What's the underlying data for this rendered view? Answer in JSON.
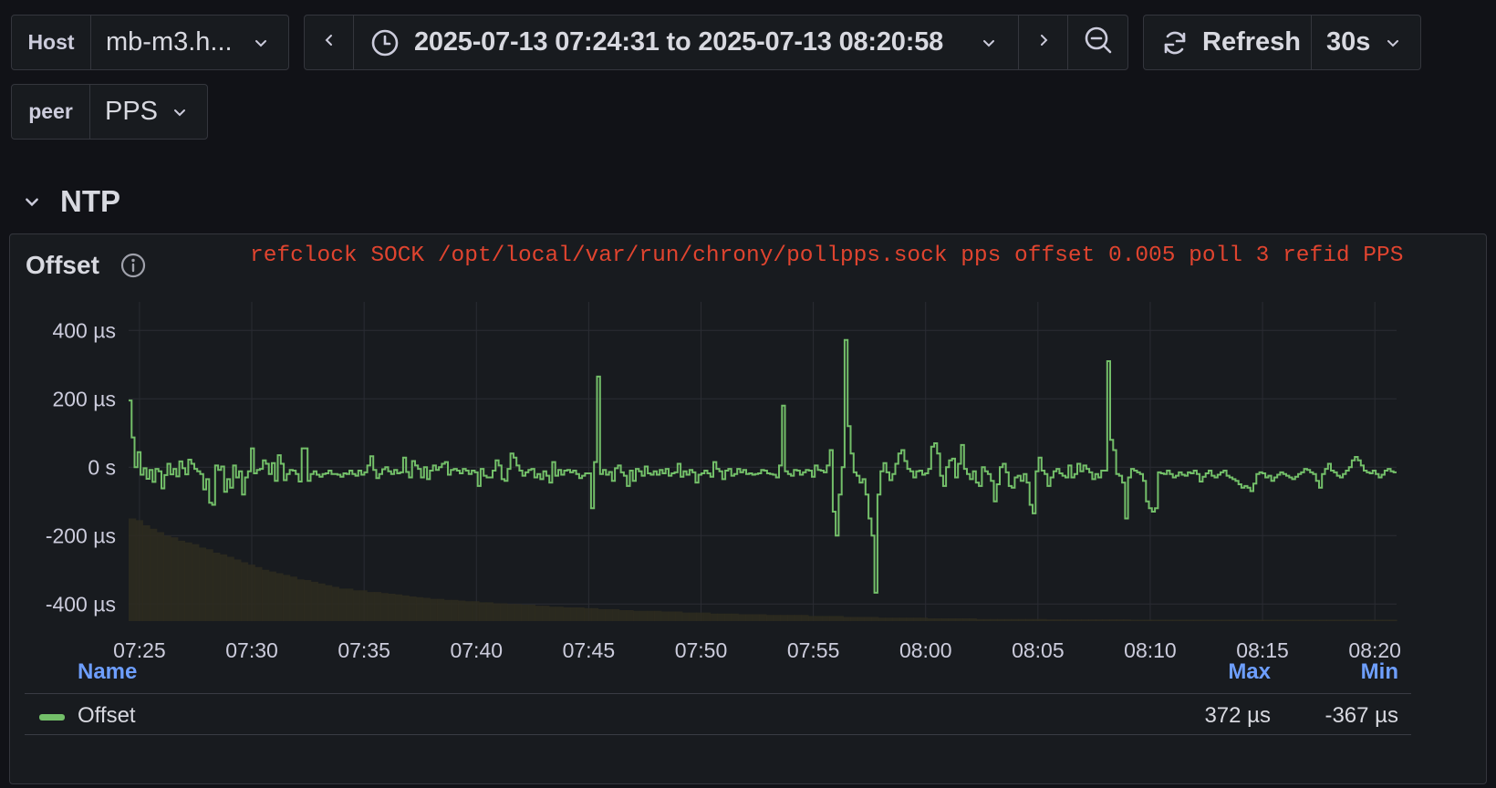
{
  "host": {
    "label": "Host",
    "value": "mb-m3.h..."
  },
  "peer": {
    "label": "peer",
    "value": "PPS"
  },
  "time_range": {
    "text": "2025-07-13 07:24:31 to 2025-07-13 08:20:58"
  },
  "refresh": {
    "label": "Refresh",
    "interval": "30s"
  },
  "row": {
    "title": "NTP"
  },
  "panel": {
    "title": "Offset",
    "annotation": "refclock SOCK /opt/local/var/run/chrony/pollpps.sock pps offset 0.005 poll 3 refid PPS"
  },
  "legend": {
    "name_header": "Name",
    "max_header": "Max",
    "min_header": "Min",
    "series_name": "Offset",
    "max_value": "372 µs",
    "min_value": "-367 µs"
  },
  "colors": {
    "series": "#73bf69",
    "fill": "#2e2b20",
    "annotation": "#e0442f",
    "legend_header": "#6e9fff"
  },
  "chart_data": {
    "type": "line",
    "ylim": [
      -450,
      430
    ],
    "y_ticks": [
      400,
      200,
      0,
      -200,
      -400
    ],
    "y_tick_labels": [
      "400 µs",
      "200 µs",
      "0 s",
      "-200 µs",
      "-400 µs"
    ],
    "x_tick_labels": [
      "07:25",
      "07:30",
      "07:35",
      "07:40",
      "07:45",
      "07:50",
      "07:55",
      "08:00",
      "08:05",
      "08:10",
      "08:15",
      "08:20"
    ],
    "x_tick_times": [
      "07:25",
      "07:30",
      "07:35",
      "07:40",
      "07:45",
      "07:50",
      "07:55",
      "08:00",
      "08:05",
      "08:10",
      "08:15",
      "08:20"
    ],
    "x_range": [
      "07:24:31",
      "08:20:58"
    ],
    "series": [
      {
        "name": "Offset",
        "step_interval_s": 16,
        "values": [
          195,
          87,
          0,
          44,
          -22,
          -3,
          -34,
          -8,
          -43,
          -5,
          -12,
          -62,
          -23,
          10,
          -21,
          -5,
          -27,
          17,
          -3,
          -21,
          22,
          10,
          -5,
          -12,
          -20,
          -65,
          -35,
          -104,
          -110,
          5,
          -8,
          2,
          -72,
          -35,
          -60,
          5,
          -30,
          -12,
          -80,
          -30,
          -12,
          55,
          -18,
          -8,
          -5,
          20,
          10,
          -20,
          12,
          -40,
          35,
          10,
          -38,
          -20,
          -8,
          -10,
          -20,
          -42,
          55,
          55,
          -40,
          -20,
          -12,
          -22,
          -28,
          -20,
          -18,
          -10,
          -20,
          -20,
          -22,
          -28,
          -18,
          -20,
          -10,
          -20,
          -25,
          -10,
          -22,
          -15,
          5,
          32,
          -8,
          -32,
          -20,
          -6,
          0,
          -12,
          -20,
          -8,
          -18,
          -15,
          28,
          -14,
          -30,
          18,
          5,
          -5,
          -30,
          0,
          -35,
          -10,
          5,
          -8,
          0,
          10,
          15,
          -22,
          -8,
          -5,
          -10,
          -18,
          -5,
          -10,
          -20,
          -10,
          -15,
          -55,
          -5,
          -25,
          -30,
          -30,
          -10,
          20,
          5,
          -35,
          -40,
          -5,
          40,
          28,
          5,
          -10,
          -25,
          -15,
          -8,
          -5,
          -30,
          -20,
          -35,
          -12,
          -25,
          -45,
          15,
          -25,
          -8,
          -22,
          -10,
          -8,
          -15,
          -10,
          -20,
          -32,
          -25,
          -18,
          -18,
          -120,
          15,
          265,
          -20,
          -8,
          -22,
          -14,
          -40,
          -3,
          5,
          -15,
          -25,
          -55,
          -10,
          -40,
          -5,
          -12,
          -25,
          2,
          -18,
          -22,
          -12,
          -22,
          -8,
          -18,
          -5,
          -25,
          -18,
          -15,
          10,
          -28,
          -12,
          -22,
          -8,
          -15,
          -45,
          -22,
          -18,
          -10,
          -18,
          -28,
          15,
          -5,
          -12,
          -35,
          -10,
          -5,
          -25,
          -20,
          -5,
          -15,
          -8,
          -20,
          -18,
          -22,
          -20,
          -18,
          -8,
          -10,
          -18,
          -20,
          -22,
          -30,
          5,
          180,
          -12,
          -20,
          -25,
          -8,
          -10,
          -22,
          -15,
          -8,
          -10,
          -28,
          5,
          -8,
          -10,
          -15,
          5,
          50,
          -130,
          -200,
          -80,
          0,
          372,
          120,
          40,
          -15,
          -25,
          -45,
          -35,
          -80,
          -150,
          -200,
          -367,
          -80,
          -12,
          12,
          -15,
          -38,
          -20,
          10,
          40,
          50,
          18,
          -5,
          -12,
          -30,
          -12,
          -10,
          -22,
          -18,
          -5,
          60,
          70,
          40,
          -25,
          -55,
          0,
          20,
          25,
          -30,
          10,
          65,
          -5,
          -20,
          -35,
          -12,
          -45,
          -55,
          0,
          -12,
          -20,
          -40,
          -100,
          -50,
          0,
          10,
          -15,
          -55,
          -60,
          -30,
          -25,
          -40,
          -20,
          -45,
          -110,
          -135,
          -12,
          28,
          -10,
          -20,
          -55,
          -30,
          -12,
          -5,
          -18,
          -25,
          -30,
          5,
          -30,
          -20,
          10,
          -12,
          5,
          -5,
          -15,
          -35,
          -20,
          -30,
          -10,
          -10,
          310,
          80,
          50,
          -20,
          -25,
          -45,
          -150,
          -30,
          -5,
          -10,
          -15,
          -20,
          -40,
          -100,
          -120,
          -130,
          -120,
          -15,
          -18,
          -20,
          -10,
          -20,
          -30,
          -25,
          -15,
          -22,
          -25,
          -15,
          -18,
          -10,
          -20,
          -42,
          -28,
          -18,
          -10,
          -25,
          -30,
          -22,
          -15,
          -10,
          -25,
          -30,
          -35,
          -40,
          -50,
          -60,
          -55,
          -60,
          -70,
          -48,
          -20,
          -15,
          -18,
          -30,
          -25,
          -40,
          -30,
          -22,
          -15,
          -20,
          -25,
          -30,
          -35,
          -28,
          -20,
          -15,
          -5,
          -8,
          -15,
          -20,
          -40,
          -60,
          -20,
          -5,
          10,
          -10,
          -15,
          -25,
          -30,
          -20,
          -10,
          0,
          20,
          30,
          20,
          5,
          -10,
          -15,
          -18,
          -10,
          -20,
          -30,
          -22,
          -10,
          -5,
          -12,
          -15
        ]
      },
      {
        "name": "",
        "values": [
          -150,
          -155,
          -170,
          -180,
          -190,
          -200,
          -205,
          -215,
          -220,
          -225,
          -235,
          -240,
          -250,
          -255,
          -262,
          -270,
          -278,
          -285,
          -292,
          -300,
          -305,
          -310,
          -315,
          -320,
          -328,
          -330,
          -335,
          -340,
          -345,
          -350,
          -355,
          -355,
          -360,
          -360,
          -365,
          -365,
          -368,
          -370,
          -372,
          -375,
          -378,
          -380,
          -382,
          -385,
          -385,
          -388,
          -388,
          -390,
          -392,
          -392,
          -395,
          -395,
          -398,
          -398,
          -400,
          -400,
          -402,
          -402,
          -405,
          -405,
          -408,
          -408,
          -410,
          -410,
          -410,
          -412,
          -412,
          -415,
          -415,
          -415,
          -418,
          -418,
          -420,
          -420,
          -420,
          -420,
          -422,
          -422,
          -422,
          -425,
          -425,
          -425,
          -425,
          -428,
          -428,
          -428,
          -428,
          -430,
          -430,
          -430,
          -430,
          -432,
          -432,
          -432,
          -432,
          -432,
          -432,
          -435,
          -435,
          -435,
          -435,
          -435,
          -438,
          -438,
          -438,
          -438,
          -438,
          -440,
          -440,
          -440,
          -440,
          -440,
          -440,
          -440,
          -442,
          -442,
          -442,
          -442,
          -442,
          -442,
          -442,
          -444,
          -444,
          -444,
          -444,
          -444,
          -444,
          -444,
          -444,
          -444,
          -444,
          -445,
          -445,
          -445,
          -445,
          -445,
          -445,
          -445,
          -445,
          -445,
          -445,
          -445,
          -445,
          -446,
          -446,
          -446,
          -446,
          -446,
          -446,
          -446,
          -446,
          -446,
          -446,
          -446,
          -446,
          -446,
          -446,
          -446,
          -446,
          -446,
          -446,
          -446,
          -446,
          -446,
          -446,
          -446,
          -446,
          -446,
          -446,
          -446,
          -446,
          -446,
          -446,
          -446,
          -446,
          -446,
          -446,
          -446,
          -446,
          -446,
          -446
        ]
      }
    ],
    "grid": true,
    "legend": "bottom"
  }
}
